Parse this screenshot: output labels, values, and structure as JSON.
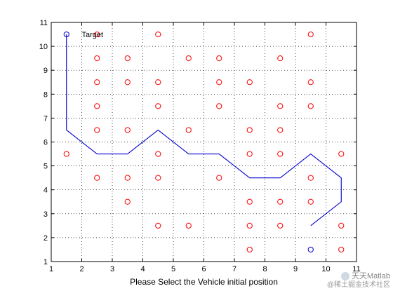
{
  "chart_data": {
    "type": "scatter",
    "xlabel": "Please Select the Vehicle initial position",
    "ylabel": "",
    "title": "",
    "xlim": [
      1,
      11
    ],
    "ylim": [
      1,
      11
    ],
    "x_ticks": [
      1,
      2,
      3,
      4,
      5,
      6,
      7,
      8,
      9,
      10,
      11
    ],
    "y_ticks": [
      1,
      2,
      3,
      4,
      5,
      6,
      7,
      8,
      9,
      10,
      11
    ],
    "grid": true,
    "series": [
      {
        "color": "#ff0000",
        "marker": "circle",
        "points": [
          [
            2.5,
            10.5
          ],
          [
            4.5,
            10.5
          ],
          [
            9.5,
            10.5
          ],
          [
            2.5,
            9.5
          ],
          [
            3.5,
            9.5
          ],
          [
            5.5,
            9.5
          ],
          [
            6.5,
            9.5
          ],
          [
            8.5,
            9.5
          ],
          [
            2.5,
            8.5
          ],
          [
            3.5,
            8.5
          ],
          [
            4.5,
            8.5
          ],
          [
            6.5,
            8.5
          ],
          [
            7.5,
            8.5
          ],
          [
            9.5,
            8.5
          ],
          [
            2.5,
            7.5
          ],
          [
            4.5,
            7.5
          ],
          [
            6.5,
            7.5
          ],
          [
            8.5,
            7.5
          ],
          [
            9.5,
            7.5
          ],
          [
            2.5,
            6.5
          ],
          [
            3.5,
            6.5
          ],
          [
            5.5,
            6.5
          ],
          [
            7.5,
            6.5
          ],
          [
            8.5,
            6.5
          ],
          [
            1.5,
            5.5
          ],
          [
            4.5,
            5.5
          ],
          [
            7.5,
            5.5
          ],
          [
            8.5,
            5.5
          ],
          [
            10.5,
            5.5
          ],
          [
            2.5,
            4.5
          ],
          [
            3.5,
            4.5
          ],
          [
            4.5,
            4.5
          ],
          [
            6.5,
            4.5
          ],
          [
            9.5,
            4.5
          ],
          [
            3.5,
            3.5
          ],
          [
            7.5,
            3.5
          ],
          [
            8.5,
            3.5
          ],
          [
            9.5,
            3.5
          ],
          [
            4.5,
            2.5
          ],
          [
            5.5,
            2.5
          ],
          [
            7.5,
            2.5
          ],
          [
            8.5,
            2.5
          ],
          [
            10.5,
            2.5
          ],
          [
            7.5,
            1.5
          ],
          [
            10.5,
            1.5
          ]
        ]
      },
      {
        "color": "#0000cc",
        "marker": "circle",
        "points": [
          [
            1.5,
            10.5
          ],
          [
            9.5,
            1.5
          ]
        ]
      },
      {
        "color": "#0000cc",
        "marker": "line",
        "points": [
          [
            9.5,
            2.5
          ],
          [
            10.5,
            3.5
          ],
          [
            10.5,
            4.5
          ],
          [
            9.5,
            5.5
          ],
          [
            8.5,
            4.5
          ],
          [
            7.5,
            4.5
          ],
          [
            6.5,
            5.5
          ],
          [
            5.5,
            5.5
          ],
          [
            4.5,
            6.5
          ],
          [
            3.5,
            5.5
          ],
          [
            2.5,
            5.5
          ],
          [
            1.5,
            6.5
          ],
          [
            1.5,
            10.5
          ]
        ]
      }
    ],
    "annotations": [
      {
        "text": "Target",
        "x": 2.0,
        "y": 10.5
      }
    ]
  },
  "watermark": {
    "name": "天天Matlab",
    "sub": "@稀土掘金技术社区"
  }
}
